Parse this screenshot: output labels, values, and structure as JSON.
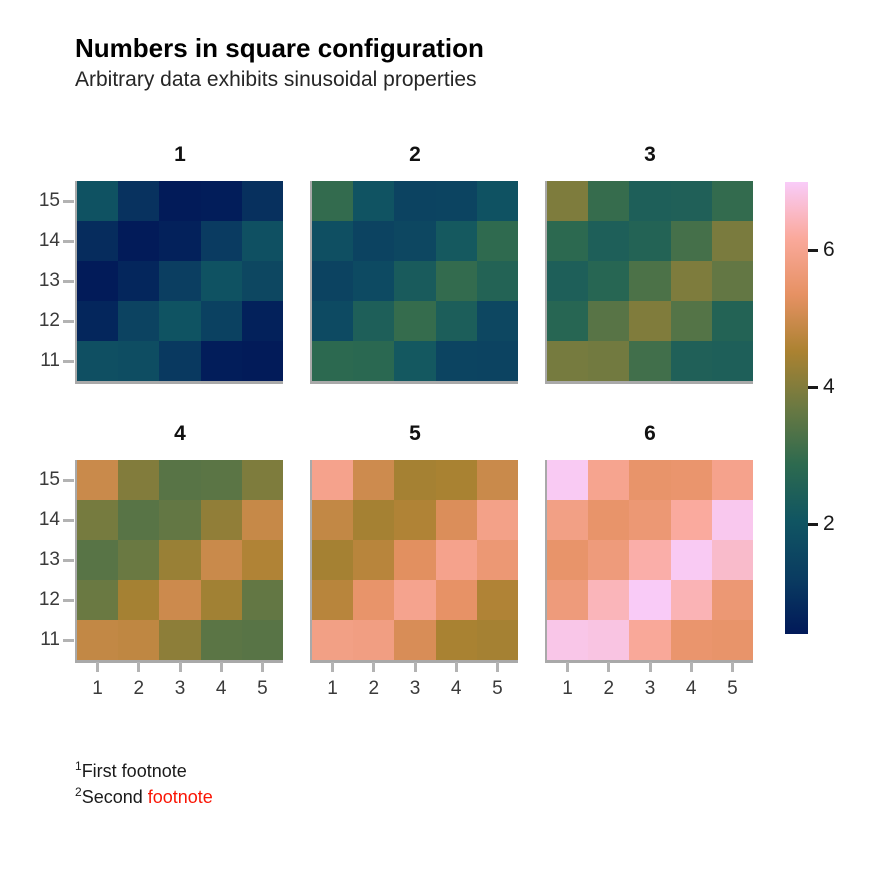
{
  "title": "Numbers in square configuration",
  "subtitle": "Arbitrary data exhibits sinusoidal properties",
  "footnotes": [
    {
      "sup": "1",
      "text": "First footnote",
      "highlight": ""
    },
    {
      "sup": "2",
      "text": "Second ",
      "highlight": "footnote"
    }
  ],
  "colors": {
    "background": "#ffffff",
    "title": "#000000",
    "subtitle": "#262626",
    "axis_text": "#3a3a3a",
    "axis_tick": "#b3b3b3",
    "panel_border": "#a9a9a9",
    "colorbar_tick": "#1a1a1a",
    "footnote_text": "#1a1a1a",
    "footnote_red": "#fa1505"
  },
  "chart_data": {
    "type": "heatmap",
    "title": "Numbers in square configuration",
    "subtitle": "Arbitrary data exhibits sinusoidal properties",
    "facet_layout": {
      "rows": 2,
      "cols": 3
    },
    "x_ticks": [
      "1",
      "2",
      "3",
      "4",
      "5"
    ],
    "y_ticks": [
      "15",
      "14",
      "13",
      "12",
      "11"
    ],
    "scale": {
      "vmin": 0.4,
      "vmax": 7.0,
      "colorbar_ticks": [
        6,
        4,
        2
      ],
      "colorbar_tick_labels": [
        "6",
        "4",
        "2"
      ],
      "colormap_stops": [
        {
          "t": 0.0,
          "c": "#011959"
        },
        {
          "t": 0.125,
          "c": "#0a3c61"
        },
        {
          "t": 0.25,
          "c": "#105562"
        },
        {
          "t": 0.375,
          "c": "#2d6a4f"
        },
        {
          "t": 0.5,
          "c": "#6a7942"
        },
        {
          "t": 0.625,
          "c": "#ab8231"
        },
        {
          "t": 0.75,
          "c": "#e69163"
        },
        {
          "t": 0.875,
          "c": "#faa99b"
        },
        {
          "t": 1.0,
          "c": "#f9ccf9"
        }
      ]
    },
    "panels": [
      {
        "title": "1",
        "values": [
          [
            1.95,
            1.0,
            0.45,
            0.5,
            0.95
          ],
          [
            0.85,
            0.45,
            0.6,
            1.2,
            1.9
          ],
          [
            0.45,
            0.7,
            1.3,
            1.95,
            1.6
          ],
          [
            0.7,
            1.45,
            1.98,
            1.4,
            0.6
          ],
          [
            1.85,
            1.8,
            1.15,
            0.5,
            0.45
          ]
        ]
      },
      {
        "title": "2",
        "values": [
          [
            2.95,
            2.0,
            1.45,
            1.5,
            1.95
          ],
          [
            1.85,
            1.45,
            1.6,
            2.2,
            2.9
          ],
          [
            1.45,
            1.7,
            2.3,
            2.95,
            2.6
          ],
          [
            1.7,
            2.45,
            2.98,
            2.4,
            1.6
          ],
          [
            2.85,
            2.8,
            2.15,
            1.5,
            1.45
          ]
        ]
      },
      {
        "title": "3",
        "values": [
          [
            3.95,
            3.0,
            2.45,
            2.5,
            2.95
          ],
          [
            2.85,
            2.45,
            2.6,
            3.2,
            3.9
          ],
          [
            2.45,
            2.7,
            3.3,
            3.95,
            3.6
          ],
          [
            2.7,
            3.45,
            3.98,
            3.4,
            2.6
          ],
          [
            3.85,
            3.8,
            3.15,
            2.5,
            2.45
          ]
        ]
      },
      {
        "title": "4",
        "values": [
          [
            4.95,
            4.0,
            3.45,
            3.5,
            3.95
          ],
          [
            3.85,
            3.45,
            3.6,
            4.2,
            4.9
          ],
          [
            3.45,
            3.7,
            4.3,
            4.95,
            4.6
          ],
          [
            3.7,
            4.45,
            4.98,
            4.4,
            3.6
          ],
          [
            4.85,
            4.8,
            4.15,
            3.5,
            3.45
          ]
        ]
      },
      {
        "title": "5",
        "values": [
          [
            5.95,
            5.0,
            4.45,
            4.5,
            4.95
          ],
          [
            4.85,
            4.45,
            4.6,
            5.2,
            5.9
          ],
          [
            4.45,
            4.7,
            5.3,
            5.95,
            5.6
          ],
          [
            4.7,
            5.45,
            5.98,
            5.4,
            4.6
          ],
          [
            5.85,
            5.8,
            5.15,
            4.5,
            4.45
          ]
        ]
      },
      {
        "title": "6",
        "values": [
          [
            6.95,
            6.0,
            5.45,
            5.5,
            5.95
          ],
          [
            5.85,
            5.45,
            5.6,
            6.2,
            6.9
          ],
          [
            5.45,
            5.7,
            6.3,
            6.95,
            6.6
          ],
          [
            5.7,
            6.45,
            6.98,
            6.4,
            5.6
          ],
          [
            6.85,
            6.8,
            6.15,
            5.5,
            5.45
          ]
        ]
      }
    ]
  }
}
